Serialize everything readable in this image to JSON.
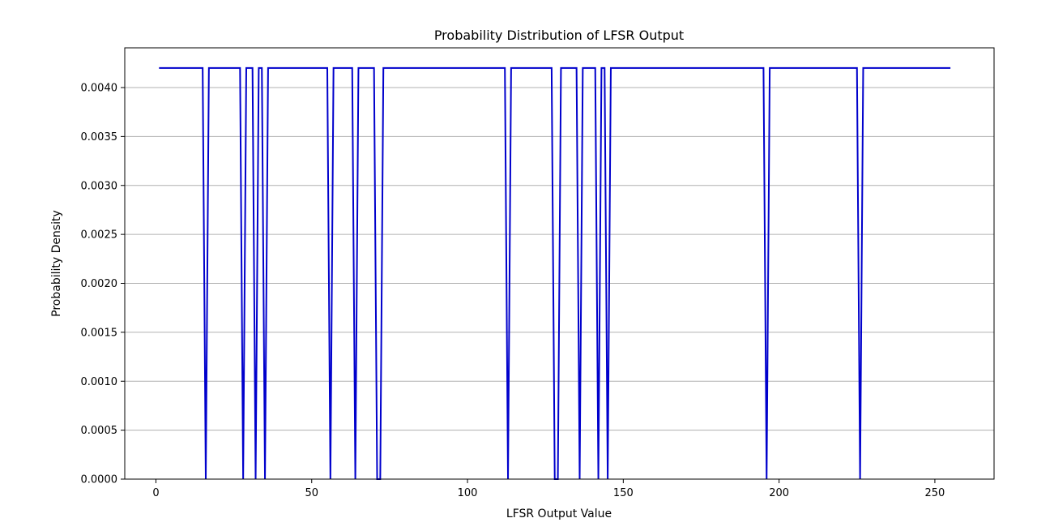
{
  "chart_data": {
    "type": "line",
    "title": "Probability Distribution of LFSR Output",
    "xlabel": "LFSR Output Value",
    "ylabel": "Probability Density",
    "xlim": [
      -10,
      269
    ],
    "ylim": [
      0,
      0.0042
    ],
    "x_ticks": [
      0,
      50,
      100,
      150,
      200,
      250
    ],
    "x_tick_labels": [
      "0",
      "50",
      "100",
      "150",
      "200",
      "250"
    ],
    "y_ticks": [
      0,
      0.0005,
      0.001,
      0.0015,
      0.002,
      0.0025,
      0.003,
      0.0035,
      0.004
    ],
    "y_tick_labels": [
      "0.0000",
      "0.0005",
      "0.0010",
      "0.0015",
      "0.0020",
      "0.0025",
      "0.0030",
      "0.0035",
      "0.0040"
    ],
    "grid": "y",
    "color": "#0000cc",
    "x_start": 1,
    "x_end": 255,
    "peak_value": 0.0042,
    "zero_values": [
      16,
      28,
      32,
      35,
      56,
      64,
      71,
      72,
      113,
      128,
      129,
      136,
      142,
      145,
      196,
      226
    ]
  }
}
